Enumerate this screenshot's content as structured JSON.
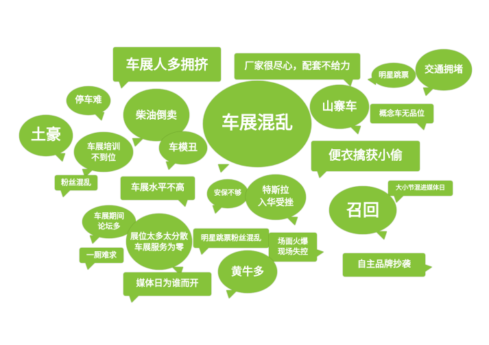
{
  "bubbles": [
    {
      "text": "车展人多拥挤"
    },
    {
      "text": "厂家很尽心，配套不给力"
    },
    {
      "text": "明星跳票"
    },
    {
      "text": "交通拥堵"
    },
    {
      "text": "停车难"
    },
    {
      "text": "柴油倒卖"
    },
    {
      "text": "车展混乱"
    },
    {
      "text": "山寨车"
    },
    {
      "text": "概念车无品位"
    },
    {
      "text": "土豪"
    },
    {
      "text": "车展培训\n不到位"
    },
    {
      "text": "车模丑"
    },
    {
      "text": "便衣擒获小偷"
    },
    {
      "text": "粉丝混乱"
    },
    {
      "text": "车展水平不高"
    },
    {
      "text": "安保不够"
    },
    {
      "text": "特斯拉\n入华受挫"
    },
    {
      "text": "大小节混进媒体日"
    },
    {
      "text": "召回"
    },
    {
      "text": "车展期间\n论坛多"
    },
    {
      "text": "展位太多太分散\n车展服务为零"
    },
    {
      "text": "明星跳票粉丝混乱"
    },
    {
      "text": "场面火爆\n现场失控"
    },
    {
      "text": "一厕难求"
    },
    {
      "text": "黄牛多"
    },
    {
      "text": "自主品牌抄袭"
    },
    {
      "text": "媒体日为谁而开"
    }
  ],
  "colors": {
    "bubble": "#86c33a",
    "text": "#ffffff"
  }
}
